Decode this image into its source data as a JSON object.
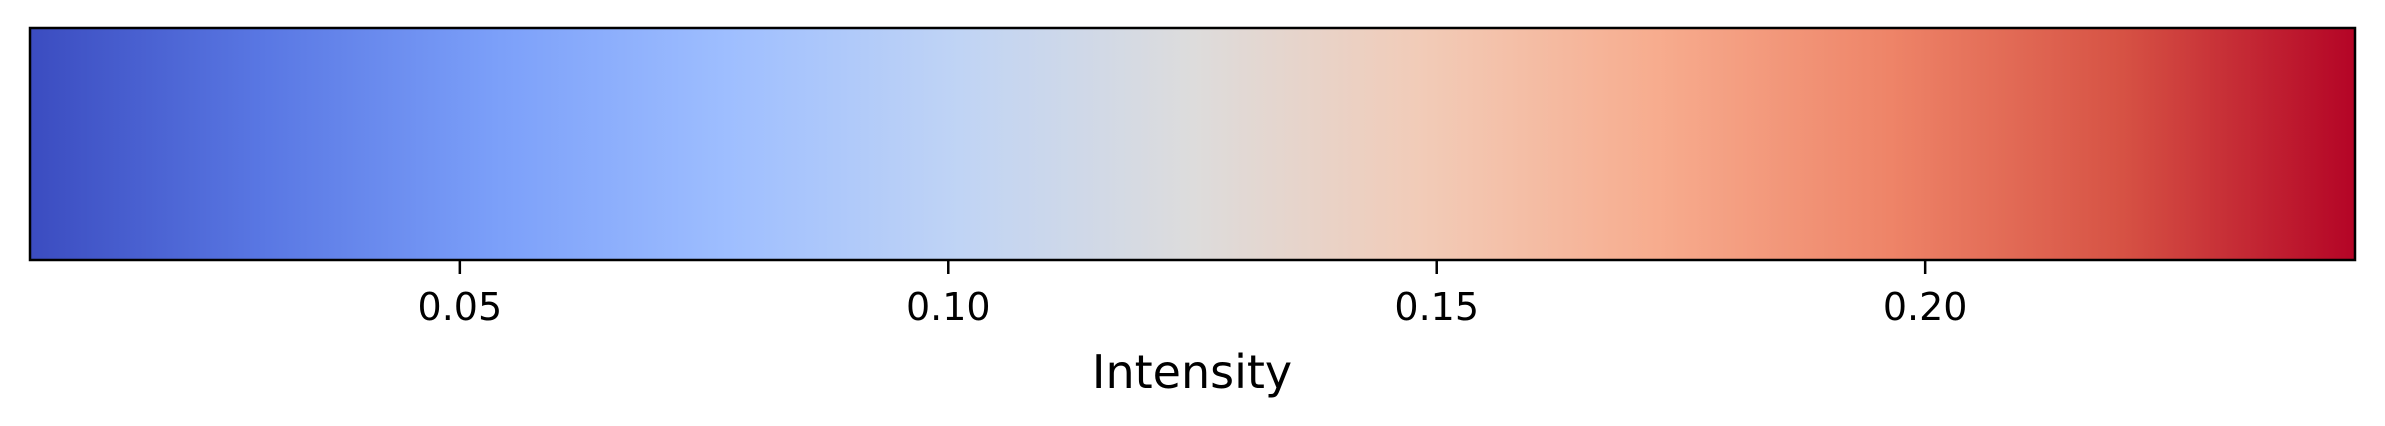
{
  "chart_data": {
    "type": "heatmap",
    "colormap": "coolwarm",
    "orientation": "horizontal",
    "xlabel": "Intensity",
    "range": [
      0.006,
      0.244
    ],
    "ticks": [
      {
        "value": 0.05,
        "label": "0.05"
      },
      {
        "value": 0.1,
        "label": "0.10"
      },
      {
        "value": 0.15,
        "label": "0.15"
      },
      {
        "value": 0.2,
        "label": "0.20"
      }
    ],
    "gradient_stops": [
      {
        "value": 0.0,
        "color": "#3b4cc0"
      },
      {
        "value": 0.125,
        "color": "#5977e3"
      },
      {
        "value": 0.25,
        "color": "#7b9ff9"
      },
      {
        "value": 0.375,
        "color": "#9ebeff"
      },
      {
        "value": 0.5,
        "color": "#c0d4f5"
      },
      {
        "value": 0.625,
        "color": "#dddcdc"
      },
      {
        "value": 0.75,
        "color": "#f2cbb7"
      },
      {
        "value": 0.875,
        "color": "#f7ac8e"
      },
      {
        "value": 1.0,
        "color": "#ee8468"
      },
      {
        "value": 1.125,
        "color": "#d65244"
      },
      {
        "value": 1.25,
        "color": "#b40426"
      }
    ]
  }
}
